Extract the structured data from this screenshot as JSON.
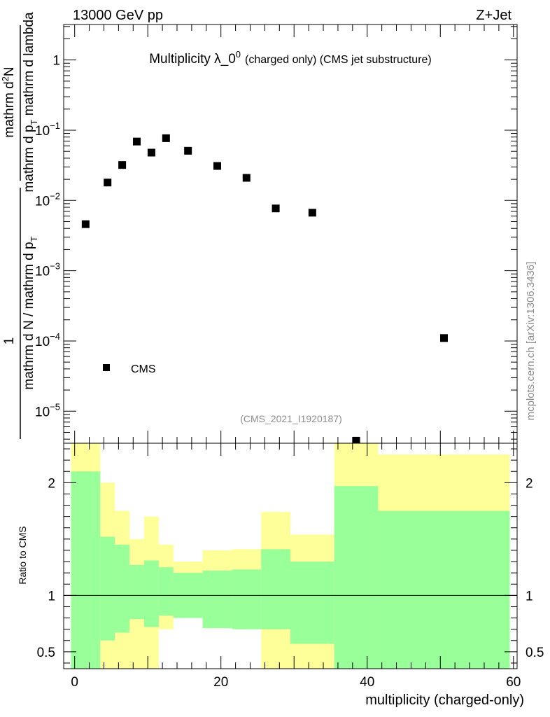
{
  "header": {
    "left": "13000 GeV pp",
    "right": "Z+Jet"
  },
  "side_label": "mcplots.cern.ch [arXiv:1306.3436]",
  "chart_data": [
    {
      "type": "scatter",
      "title_main": "Multiplicity λ_0",
      "title_sup": "0",
      "title_rest": "(charged only) (CMS jet substructure)",
      "analysis_label": "(CMS_2021_I1920187)",
      "ylabel_pieces": {
        "top_numerator": "mathrm d",
        "top_numerator_sup": "2",
        "top_numerator_N": "N",
        "top_denominator": "mathrm d p",
        "top_denominator_sub": "T",
        "top_denominator_rest": " mathrm d lambda",
        "bottom_numerator": "1",
        "bottom_denominator": "mathrm d N / mathrm d p",
        "bottom_denominator_sub": "T"
      },
      "yscale": "log",
      "ylim": [
        3.5e-06,
        3.2
      ],
      "xlim": [
        -1.5,
        60.5
      ],
      "yticks": [
        {
          "value": 1,
          "mant": "1",
          "exp": ""
        },
        {
          "value": 0.1,
          "mant": "10",
          "exp": "−1"
        },
        {
          "value": 0.01,
          "mant": "10",
          "exp": "−2"
        },
        {
          "value": 0.001,
          "mant": "10",
          "exp": "−3"
        },
        {
          "value": 0.0001,
          "mant": "10",
          "exp": "−4"
        },
        {
          "value": 1e-05,
          "mant": "10",
          "exp": "−5"
        }
      ],
      "legend": {
        "label": "CMS",
        "placement": "bottom-left"
      },
      "series": [
        {
          "name": "CMS",
          "x": [
            1.5,
            4.5,
            6.5,
            8.5,
            10.5,
            12.5,
            15.5,
            19.5,
            23.5,
            27.5,
            32.5,
            38.5,
            50.5
          ],
          "y": [
            0.0046,
            0.018,
            0.032,
            0.069,
            0.048,
            0.077,
            0.051,
            0.031,
            0.021,
            0.0077,
            0.0067,
            3.8e-06,
            0.00011
          ]
        }
      ]
    },
    {
      "type": "area",
      "ylabel": "Ratio to CMS",
      "xlabel": "multiplicity (charged-only)",
      "xlim": [
        -1.5,
        60.5
      ],
      "ylim": [
        0.35,
        2.35
      ],
      "xticks": [
        0,
        20,
        40,
        60
      ],
      "yticks": [
        {
          "value": 0.5,
          "label": "0.5"
        },
        {
          "value": 1,
          "label": "1"
        },
        {
          "value": 2,
          "label": "2"
        }
      ],
      "reference_line": 1,
      "bands": {
        "x_edges": [
          -0.5,
          3.5,
          5.5,
          7.5,
          9.5,
          11.5,
          13.5,
          17.5,
          21.5,
          25.5,
          29.5,
          35.5,
          41.5,
          59.5
        ],
        "outer_upper": [
          2.35,
          2.0,
          1.75,
          1.5,
          1.7,
          1.45,
          1.3,
          1.4,
          1.41,
          1.74,
          1.54,
          2.35,
          2.25
        ],
        "outer_lower": [
          0.35,
          0.35,
          0.35,
          0.35,
          0.35,
          0.7,
          0.89,
          0.83,
          0.77,
          0.35,
          0.35,
          0.35,
          0.35
        ],
        "inner_upper": [
          2.1,
          1.52,
          1.45,
          1.27,
          1.31,
          1.25,
          1.2,
          1.22,
          1.23,
          1.41,
          1.3,
          1.97,
          1.75
        ],
        "inner_lower": [
          0.35,
          0.6,
          0.67,
          0.79,
          0.72,
          0.82,
          0.8,
          0.71,
          0.7,
          0.7,
          0.57,
          0.35,
          0.35
        ]
      },
      "colors": {
        "outer": "#ffff99",
        "inner": "#99ff99",
        "line": "#000000"
      }
    }
  ]
}
